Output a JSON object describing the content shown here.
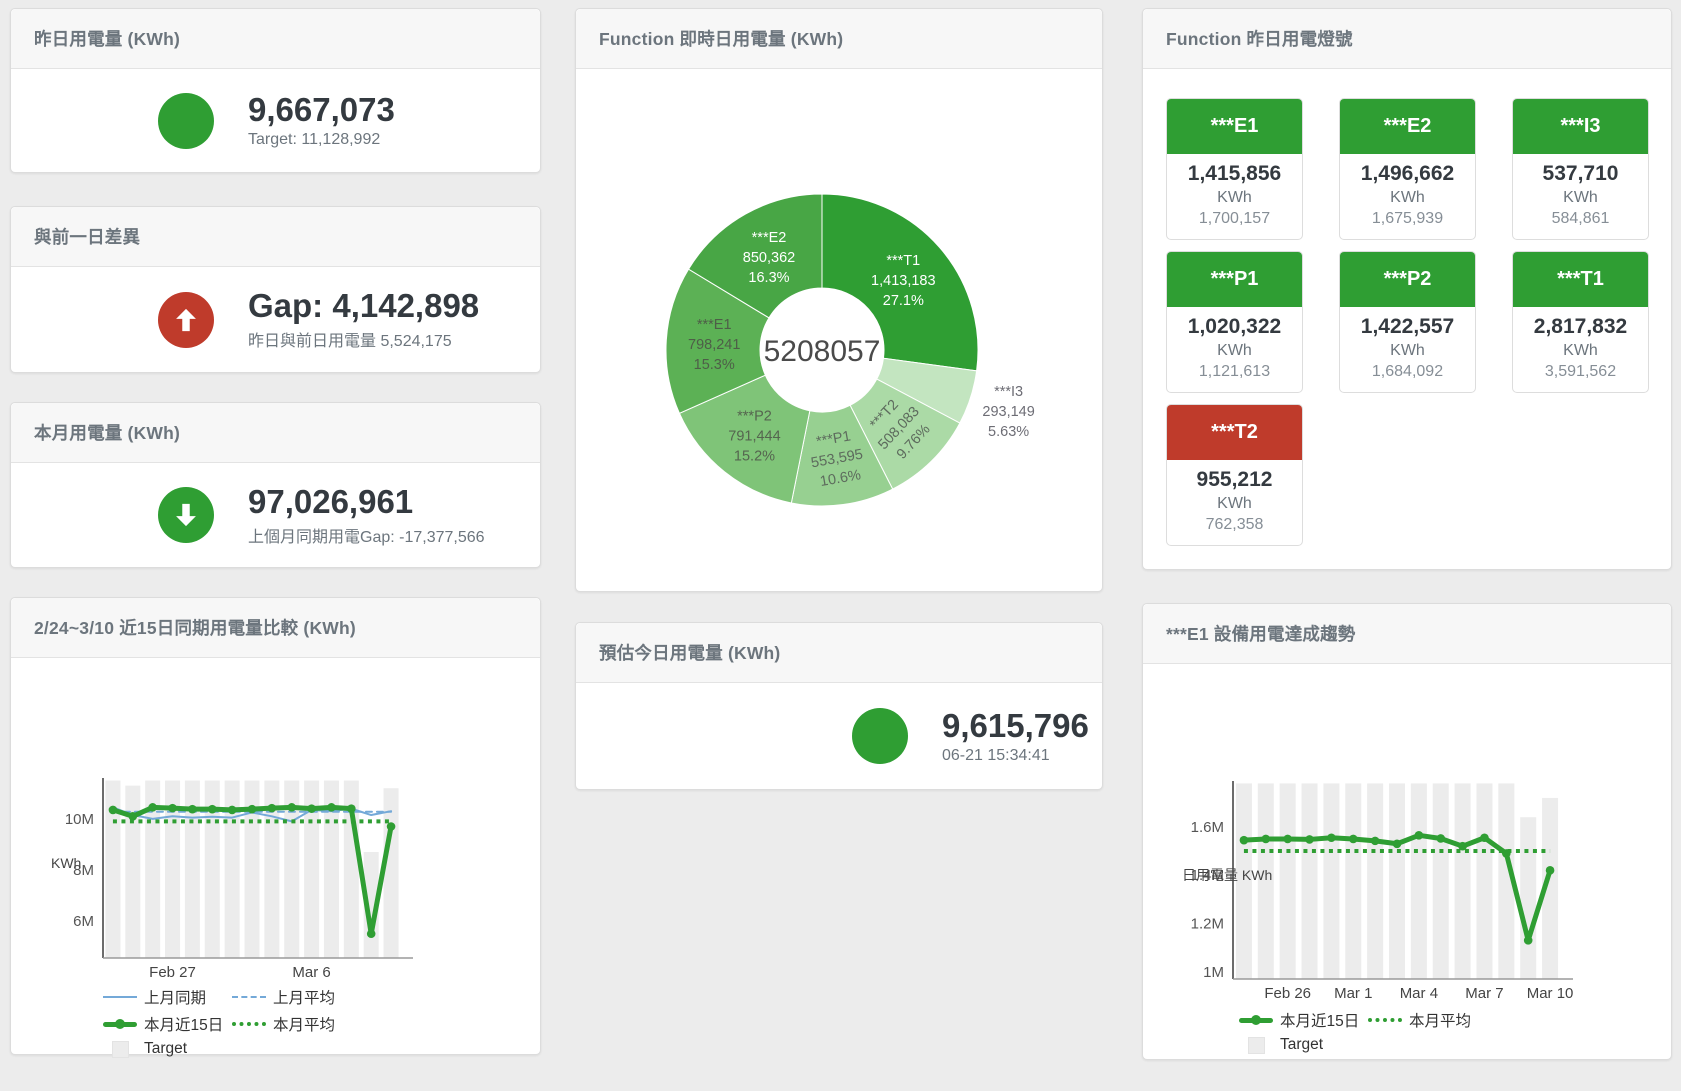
{
  "colors": {
    "green": "#2f9e33",
    "red": "#bf3b2b",
    "blue": "#74a9d8",
    "target_bar": "#ececec"
  },
  "cards": {
    "yesterday": {
      "title": "昨日用電量 (KWh)",
      "value": "9,667,073",
      "subtitle": "Target: 11,128,992"
    },
    "gap": {
      "title": "與前一日差異",
      "value": "Gap: 4,142,898",
      "subtitle": "昨日與前日用電量 5,524,175"
    },
    "month": {
      "title": "本月用電量 (KWh)",
      "value": "97,026,961",
      "subtitle": "上個月同期用電Gap: -17,377,566"
    },
    "comparison": {
      "title": "2/24~3/10 近15日同期用電量比較 (KWh)"
    },
    "realtime": {
      "title": "Function 即時日用電量 (KWh)"
    },
    "estimate": {
      "title": "預估今日用電量 (KWh)",
      "value": "9,615,796",
      "timestamp": "06-21 15:34:41"
    },
    "lights": {
      "title": "Function 昨日用電燈號",
      "tiles": [
        {
          "label": "***E1",
          "value": "1,415,856",
          "unit": "KWh",
          "target": "1,700,157",
          "status": "green"
        },
        {
          "label": "***E2",
          "value": "1,496,662",
          "unit": "KWh",
          "target": "1,675,939",
          "status": "green"
        },
        {
          "label": "***I3",
          "value": "537,710",
          "unit": "KWh",
          "target": "584,861",
          "status": "green"
        },
        {
          "label": "***P1",
          "value": "1,020,322",
          "unit": "KWh",
          "target": "1,121,613",
          "status": "green"
        },
        {
          "label": "***P2",
          "value": "1,422,557",
          "unit": "KWh",
          "target": "1,684,092",
          "status": "green"
        },
        {
          "label": "***T1",
          "value": "2,817,832",
          "unit": "KWh",
          "target": "3,591,562",
          "status": "green"
        },
        {
          "label": "***T2",
          "value": "955,212",
          "unit": "KWh",
          "target": "762,358",
          "status": "red"
        }
      ]
    },
    "trend": {
      "title": "***E1 設備用電達成趨勢"
    }
  },
  "chart_data": [
    {
      "type": "pie",
      "title": "Function 即時日用電量 (KWh)",
      "center_total": "5208057",
      "segments": [
        {
          "name": "***T1",
          "value": 1413183,
          "value_text": "1,413,183",
          "pct": "27.1%",
          "color": "#2f9e33",
          "label_color": "#ffffff"
        },
        {
          "name": "***I3",
          "value": 293149,
          "value_text": "293,149",
          "pct": "5.63%",
          "color": "#c3e5c0",
          "label_color": "#6d6d75",
          "label_outside": true
        },
        {
          "name": "***T2",
          "value": 508083,
          "value_text": "508,083",
          "pct": "9.76%",
          "color": "#abdaa6",
          "label_color": "#5d6b5d",
          "label_rotate": -47
        },
        {
          "name": "***P1",
          "value": 553595,
          "value_text": "553,595",
          "pct": "10.6%",
          "color": "#97d091",
          "label_color": "#5d6b5d",
          "label_rotate": -10
        },
        {
          "name": "***P2",
          "value": 791444,
          "value_text": "791,444",
          "pct": "15.2%",
          "color": "#7fc478",
          "label_color": "#55654f"
        },
        {
          "name": "***E1",
          "value": 798241,
          "value_text": "798,241",
          "pct": "15.3%",
          "color": "#5cb155",
          "label_color": "#4e5e48"
        },
        {
          "name": "***E2",
          "value": 850362,
          "value_text": "850,362",
          "pct": "16.3%",
          "color": "#48a645",
          "label_color": "#ffffff"
        }
      ]
    },
    {
      "type": "line",
      "title": "2/24~3/10 近15日同期用電量比較 (KWh)",
      "ylabel": "KWh",
      "ylim": [
        4.55,
        11.6
      ],
      "yticks": [
        {
          "v": 6,
          "label": "6M"
        },
        {
          "v": 8,
          "label": "8M"
        },
        {
          "v": 10,
          "label": "10M"
        }
      ],
      "x_count": 15,
      "xticks": [
        {
          "i": 3,
          "label": "Feb 27"
        },
        {
          "i": 10,
          "label": "Mar 6"
        }
      ],
      "legend_position": "bottom-left",
      "grid": false,
      "series": [
        {
          "name": "Target",
          "type": "bar",
          "color": "#ececec",
          "values": [
            11.5,
            11.3,
            11.5,
            11.5,
            11.5,
            11.5,
            11.5,
            11.5,
            11.5,
            11.5,
            11.5,
            11.5,
            11.5,
            8.7,
            11.2
          ]
        },
        {
          "name": "上月同期",
          "type": "line",
          "color": "#74a9d8",
          "width": 2,
          "values": [
            10.45,
            10.15,
            10.0,
            10.1,
            10.05,
            10.08,
            10.05,
            10.25,
            10.1,
            9.9,
            10.35,
            10.3,
            10.4,
            10.15,
            10.3
          ]
        },
        {
          "name": "上月平均",
          "type": "line",
          "dash": "dashed",
          "color": "#74a9d8",
          "width": 2,
          "constant": 10.28
        },
        {
          "name": "本月近15日",
          "type": "line",
          "color": "#2f9e33",
          "width": 5,
          "markers": true,
          "values": [
            10.35,
            10.1,
            10.45,
            10.42,
            10.38,
            10.38,
            10.35,
            10.38,
            10.42,
            10.45,
            10.4,
            10.45,
            10.4,
            5.5,
            9.7
          ]
        },
        {
          "name": "本月平均",
          "type": "line",
          "dash": "dotted",
          "color": "#2f9e33",
          "width": 4,
          "constant": 9.9
        }
      ]
    },
    {
      "type": "line",
      "title": "***E1 設備用電達成趨勢",
      "ylabel": "日用電量 KWh",
      "ylim": [
        0.97,
        1.79
      ],
      "yticks": [
        {
          "v": 1,
          "label": "1M"
        },
        {
          "v": 1.2,
          "label": "1.2M"
        },
        {
          "v": 1.4,
          "label": "1.4M"
        },
        {
          "v": 1.6,
          "label": "1.6M"
        }
      ],
      "x_count": 15,
      "xticks": [
        {
          "i": 2,
          "label": "Feb 26"
        },
        {
          "i": 5,
          "label": "Mar 1"
        },
        {
          "i": 8,
          "label": "Mar 4"
        },
        {
          "i": 11,
          "label": "Mar 7"
        },
        {
          "i": 14,
          "label": "Mar 10"
        }
      ],
      "legend_position": "bottom-left",
      "grid": false,
      "series": [
        {
          "name": "Target",
          "type": "bar",
          "color": "#ececec",
          "values": [
            1.78,
            1.78,
            1.78,
            1.78,
            1.78,
            1.78,
            1.78,
            1.78,
            1.78,
            1.78,
            1.78,
            1.78,
            1.78,
            1.64,
            1.72
          ]
        },
        {
          "name": "本月近15日",
          "type": "line",
          "color": "#2f9e33",
          "width": 5,
          "markers": true,
          "values": [
            1.545,
            1.55,
            1.55,
            1.548,
            1.555,
            1.55,
            1.542,
            1.53,
            1.565,
            1.552,
            1.52,
            1.555,
            1.49,
            1.13,
            1.42
          ]
        },
        {
          "name": "本月平均",
          "type": "line",
          "dash": "dotted",
          "color": "#2f9e33",
          "width": 4,
          "constant": 1.5
        }
      ]
    }
  ]
}
